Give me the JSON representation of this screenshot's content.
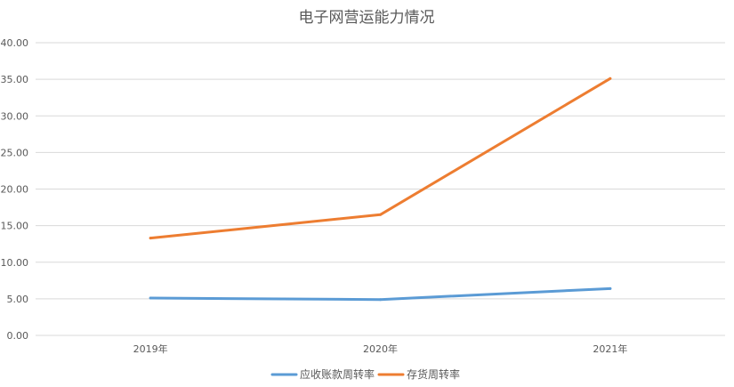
{
  "chart_data": {
    "type": "line",
    "title": "电子网营运能力情况",
    "xlabel": "",
    "ylabel": "",
    "categories": [
      "2019年",
      "2020年",
      "2021年"
    ],
    "ylim": [
      0,
      40
    ],
    "yticks": [
      "0.00",
      "5.00",
      "10.00",
      "15.00",
      "20.00",
      "25.00",
      "30.00",
      "35.00",
      "40.00"
    ],
    "grid": true,
    "legend_position": "bottom",
    "series": [
      {
        "name": "应收账款周转率",
        "color": "#5b9bd5",
        "values": [
          5.1,
          4.9,
          6.4
        ]
      },
      {
        "name": "存货周转率",
        "color": "#ed7d31",
        "values": [
          13.3,
          16.5,
          35.1
        ]
      }
    ]
  }
}
